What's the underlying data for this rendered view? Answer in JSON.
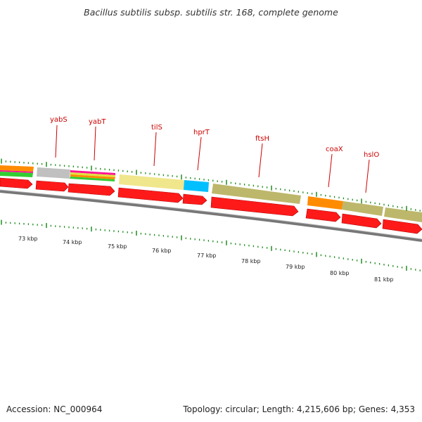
{
  "title": "Bacillus subtilis subsp. subtilis str. 168, complete genome",
  "footer": {
    "accession": "Accession: NC_000964",
    "summary": "Topology: circular; Length: 4,215,606 bp; Genes: 4,353"
  },
  "genes": [
    {
      "name": "yabS",
      "color": "#cc0000"
    },
    {
      "name": "yabT",
      "color": "#cc0000"
    },
    {
      "name": "tilS",
      "color": "#cc0000"
    },
    {
      "name": "hprT",
      "color": "#cc0000"
    },
    {
      "name": "ftsH",
      "color": "#cc0000"
    },
    {
      "name": "coaX",
      "color": "#cc0000"
    },
    {
      "name": "hslO",
      "color": "#cc0000"
    }
  ],
  "kbp_labels": [
    "73 kbp",
    "74 kbp",
    "75 kbp",
    "76 kbp",
    "77 kbp",
    "78 kbp",
    "79 kbp",
    "80 kbp",
    "81 kbp"
  ],
  "colors": {
    "cds_arrow": "#ff1a1a",
    "cds_arrow_edge": "#b30000",
    "backbone": "#777777",
    "tick": "#228b22",
    "orange": "#ff8c00",
    "grey": "#c0c0c0",
    "pink": "#ff1493",
    "green": "#32cd32",
    "yellow": "#f0e68c",
    "cyan": "#00bfff",
    "olive": "#bdb76b"
  }
}
